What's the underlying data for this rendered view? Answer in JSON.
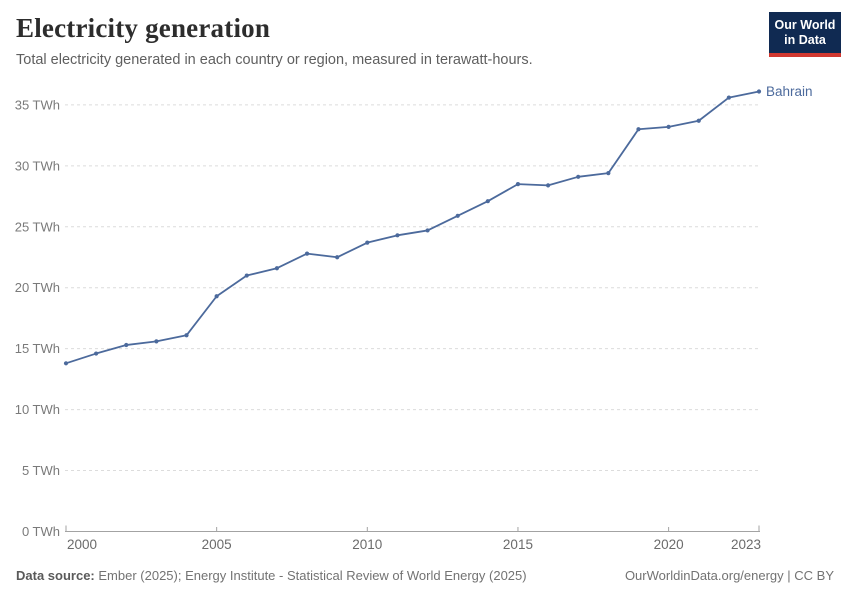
{
  "header": {
    "title": "Electricity generation",
    "subtitle": "Total electricity generated in each country or region, measured in terawatt-hours.",
    "logo": {
      "line1": "Our World",
      "line2": "in Data"
    }
  },
  "chart_data": {
    "type": "line",
    "title": "Electricity generation",
    "xlabel": "",
    "ylabel": "TWh",
    "x": [
      2000,
      2001,
      2002,
      2003,
      2004,
      2005,
      2006,
      2007,
      2008,
      2009,
      2010,
      2011,
      2012,
      2013,
      2014,
      2015,
      2016,
      2017,
      2018,
      2019,
      2020,
      2021,
      2022,
      2023
    ],
    "series": [
      {
        "name": "Bahrain",
        "color": "#4C6A9C",
        "values": [
          13.8,
          14.6,
          15.3,
          15.6,
          16.1,
          19.3,
          21.0,
          21.6,
          22.8,
          22.5,
          23.7,
          24.3,
          24.7,
          25.9,
          27.1,
          28.5,
          28.4,
          29.1,
          29.4,
          33.0,
          33.2,
          33.7,
          35.6,
          36.1
        ]
      }
    ],
    "xlim": [
      2000,
      2023
    ],
    "ylim": [
      0,
      35
    ],
    "x_ticks": [
      2000,
      2005,
      2010,
      2015,
      2020,
      2023
    ],
    "x_tick_labels": [
      "2000",
      "2005",
      "2010",
      "2015",
      "2020",
      "2023"
    ],
    "y_ticks": [
      0,
      5,
      10,
      15,
      20,
      25,
      30,
      35
    ],
    "y_tick_labels": [
      "0 TWh",
      "5 TWh",
      "10 TWh",
      "15 TWh",
      "20 TWh",
      "25 TWh",
      "30 TWh",
      "35 TWh"
    ],
    "grid": "horizontal-dashed",
    "legend_position": "end-of-line-label",
    "end_label": "Bahrain"
  },
  "footer": {
    "source_label": "Data source:",
    "source_value": "Ember (2025); Energy Institute - Statistical Review of World Energy (2025)",
    "credit": "OurWorldinData.org/energy | CC BY"
  },
  "colors": {
    "line": "#4C6A9C",
    "grid": "#dcdcdc",
    "axis": "#a3a3a3",
    "x_tick_text": "#6b6b6b",
    "y_tick_text": "#7a7a7a",
    "logo_bg": "#102a52",
    "logo_red": "#d13830"
  }
}
